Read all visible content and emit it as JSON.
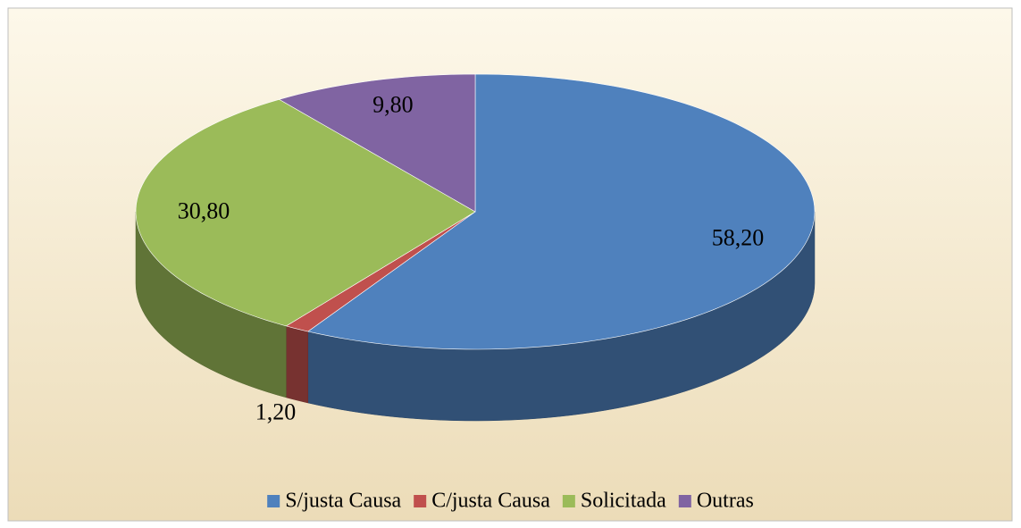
{
  "chart_data": {
    "type": "pie",
    "categories": [
      "S/justa Causa",
      "C/justa Causa",
      "Solicitada",
      "Outras"
    ],
    "values": [
      58.2,
      1.2,
      30.8,
      9.8
    ],
    "value_labels": [
      "58,20",
      "1,20",
      "30,80",
      "9,80"
    ],
    "colors": [
      "#4f81bd",
      "#c0504d",
      "#9bbb59",
      "#8064a2"
    ],
    "legend": "bottom"
  }
}
